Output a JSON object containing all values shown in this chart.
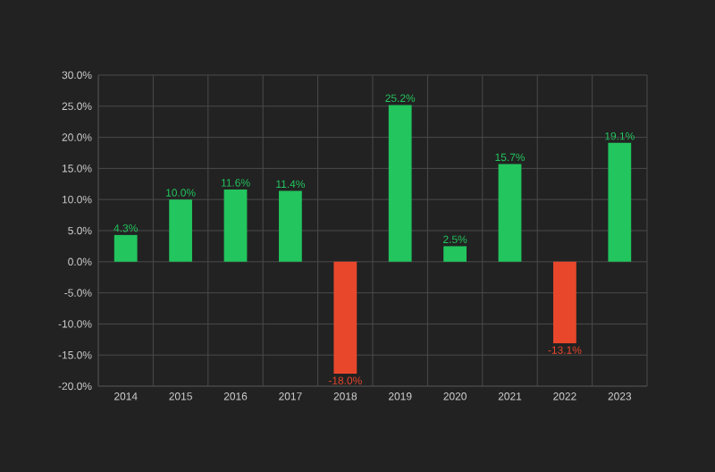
{
  "chart_data": {
    "type": "bar",
    "categories": [
      "2014",
      "2015",
      "2016",
      "2017",
      "2018",
      "2019",
      "2020",
      "2021",
      "2022",
      "2023"
    ],
    "values": [
      4.3,
      10.0,
      11.6,
      11.4,
      -18.0,
      25.2,
      2.5,
      15.7,
      -13.1,
      19.1
    ],
    "colors": [
      "#22c55e",
      "#22c55e",
      "#22c55e",
      "#22c55e",
      "#e8472c",
      "#22c55e",
      "#22c55e",
      "#22c55e",
      "#e8472c",
      "#22c55e"
    ],
    "value_labels": [
      "4.3%",
      "10.0%",
      "11.6%",
      "11.4%",
      "-18.0%",
      "25.2%",
      "2.5%",
      "15.7%",
      "-13.1%",
      "19.1%"
    ],
    "ylim": [
      -20,
      30
    ],
    "yticks": [
      {
        "value": -20,
        "label": "-20.0%"
      },
      {
        "value": -15,
        "label": "-15.0%"
      },
      {
        "value": -10,
        "label": "-10.0%"
      },
      {
        "value": -5,
        "label": "-5.0%"
      },
      {
        "value": 0,
        "label": "0.0%"
      },
      {
        "value": 5,
        "label": "5.0%"
      },
      {
        "value": 10,
        "label": "10.0%"
      },
      {
        "value": 15,
        "label": "15.0%"
      },
      {
        "value": 20,
        "label": "20.0%"
      },
      {
        "value": 25,
        "label": "25.0%"
      },
      {
        "value": 30,
        "label": "30.0%"
      }
    ],
    "grid": true
  }
}
